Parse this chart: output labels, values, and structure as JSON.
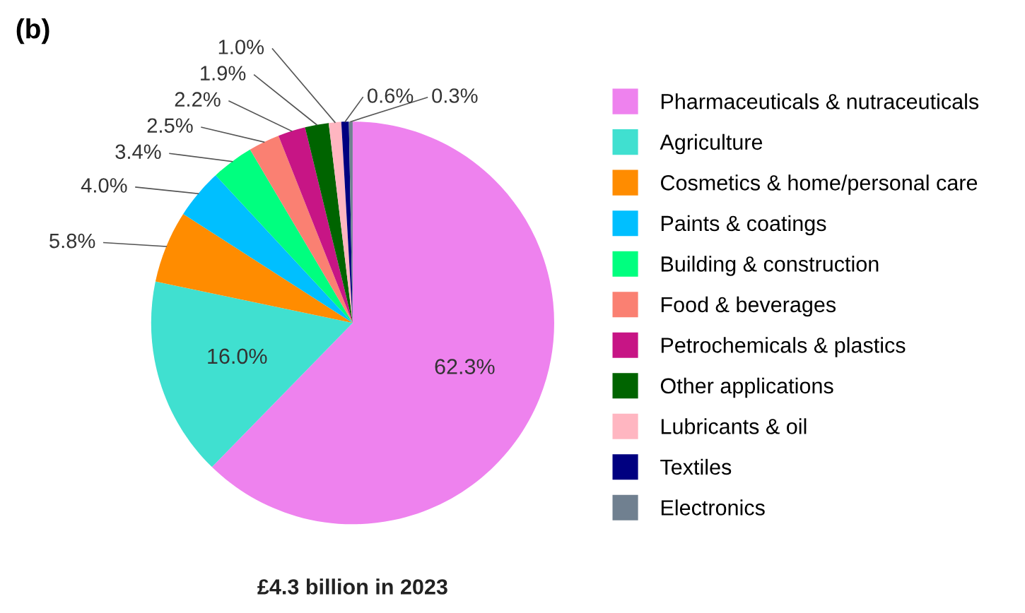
{
  "chart_data": {
    "type": "pie",
    "title": "(b)",
    "categories": [
      "Pharmaceuticals & nutraceuticals",
      "Agriculture",
      "Cosmetics & home/personal care",
      "Paints & coatings",
      "Building & construction",
      "Food & beverages",
      "Petrochemicals & plastics",
      "Other applications",
      "Lubricants & oil",
      "Textiles",
      "Electronics"
    ],
    "values": [
      62.3,
      16.0,
      5.8,
      4.0,
      3.4,
      2.5,
      2.2,
      1.9,
      1.0,
      0.6,
      0.3
    ],
    "colors": [
      "#ee82ee",
      "#40e0d0",
      "#ff8c00",
      "#00bfff",
      "#00ff7f",
      "#fa8072",
      "#c71585",
      "#006400",
      "#ffb6c1",
      "#000080",
      "#708090"
    ],
    "value_labels": [
      "62.3%",
      "16.0%",
      "5.8%",
      "4.0%",
      "3.4%",
      "2.5%",
      "2.2%",
      "1.9%",
      "1.0%",
      "0.6%",
      "0.3%"
    ],
    "annotations": [
      "£4.3 billion in 2023"
    ],
    "legend": "right"
  }
}
